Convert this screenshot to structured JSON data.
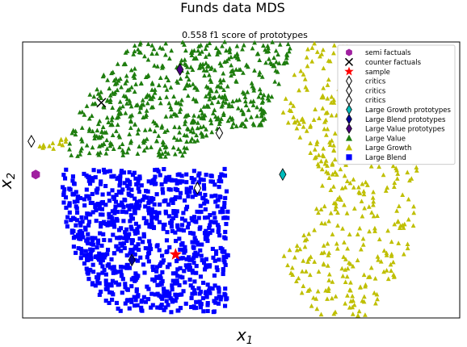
{
  "chart_data": {
    "type": "scatter",
    "title": "Funds data MDS",
    "subtitle": "0.558 f1 score of prototypes",
    "xlabel": "x_1",
    "ylabel": "x_2",
    "xticks": "none",
    "yticks": "none",
    "grid": false,
    "legend_position": "top-right",
    "series": [
      {
        "name": "Large Value",
        "marker": "triangle",
        "color": "#1e7d0e",
        "region": "upper-left arc",
        "approx_count": 600
      },
      {
        "name": "Large Growth",
        "marker": "triangle",
        "color": "#bfbf00",
        "region": "right arc",
        "approx_count": 450
      },
      {
        "name": "Large Blend",
        "marker": "square",
        "color": "#0000ff",
        "region": "lower-left",
        "approx_count": 900
      }
    ],
    "markers": [
      {
        "label": "semi factuals",
        "marker": "hexagon",
        "color": "#a020a0",
        "x": 0.03,
        "y": 0.52
      },
      {
        "label": "counter factuals",
        "marker": "x",
        "color": "#000000",
        "x": 0.18,
        "y": 0.78
      },
      {
        "label": "sample",
        "marker": "star",
        "color": "#ff0000",
        "x": 0.35,
        "y": 0.23
      },
      {
        "label": "critics",
        "marker": "diamond-open",
        "color": "#000000",
        "x": 0.4,
        "y": 0.47
      },
      {
        "label": "critics",
        "marker": "diamond-open",
        "color": "#000000",
        "x": 0.02,
        "y": 0.64
      },
      {
        "label": "critics",
        "marker": "diamond-open",
        "color": "#000000",
        "x": 0.45,
        "y": 0.67
      },
      {
        "label": "Large Growth prototypes",
        "marker": "diamond",
        "color": "#00bcbc",
        "x": 0.595,
        "y": 0.52
      },
      {
        "label": "Large Blend prototypes",
        "marker": "diamond",
        "color": "#00009a",
        "x": 0.25,
        "y": 0.21
      },
      {
        "label": "Large Value prototypes",
        "marker": "diamond",
        "color": "#4b0082",
        "x": 0.36,
        "y": 0.9
      }
    ],
    "legend": [
      {
        "label": "semi factuals",
        "marker": "hexagon",
        "color": "#a020a0"
      },
      {
        "label": "counter factuals",
        "marker": "x",
        "color": "#000000"
      },
      {
        "label": "sample",
        "marker": "star",
        "color": "#ff0000"
      },
      {
        "label": "critics",
        "marker": "diamond-open",
        "color": "#000000"
      },
      {
        "label": "critics",
        "marker": "diamond-open",
        "color": "#000000"
      },
      {
        "label": "critics",
        "marker": "diamond-open",
        "color": "#000000"
      },
      {
        "label": "Large Growth prototypes",
        "marker": "diamond",
        "color": "#00bcbc"
      },
      {
        "label": "Large Blend prototypes",
        "marker": "diamond",
        "color": "#00009a"
      },
      {
        "label": "Large Value prototypes",
        "marker": "diamond",
        "color": "#4b0082"
      },
      {
        "label": "Large Value",
        "marker": "triangle",
        "color": "#1e7d0e"
      },
      {
        "label": "Large Growth",
        "marker": "triangle",
        "color": "#bfbf00"
      },
      {
        "label": "Large Blend",
        "marker": "square",
        "color": "#0000ff"
      }
    ]
  }
}
